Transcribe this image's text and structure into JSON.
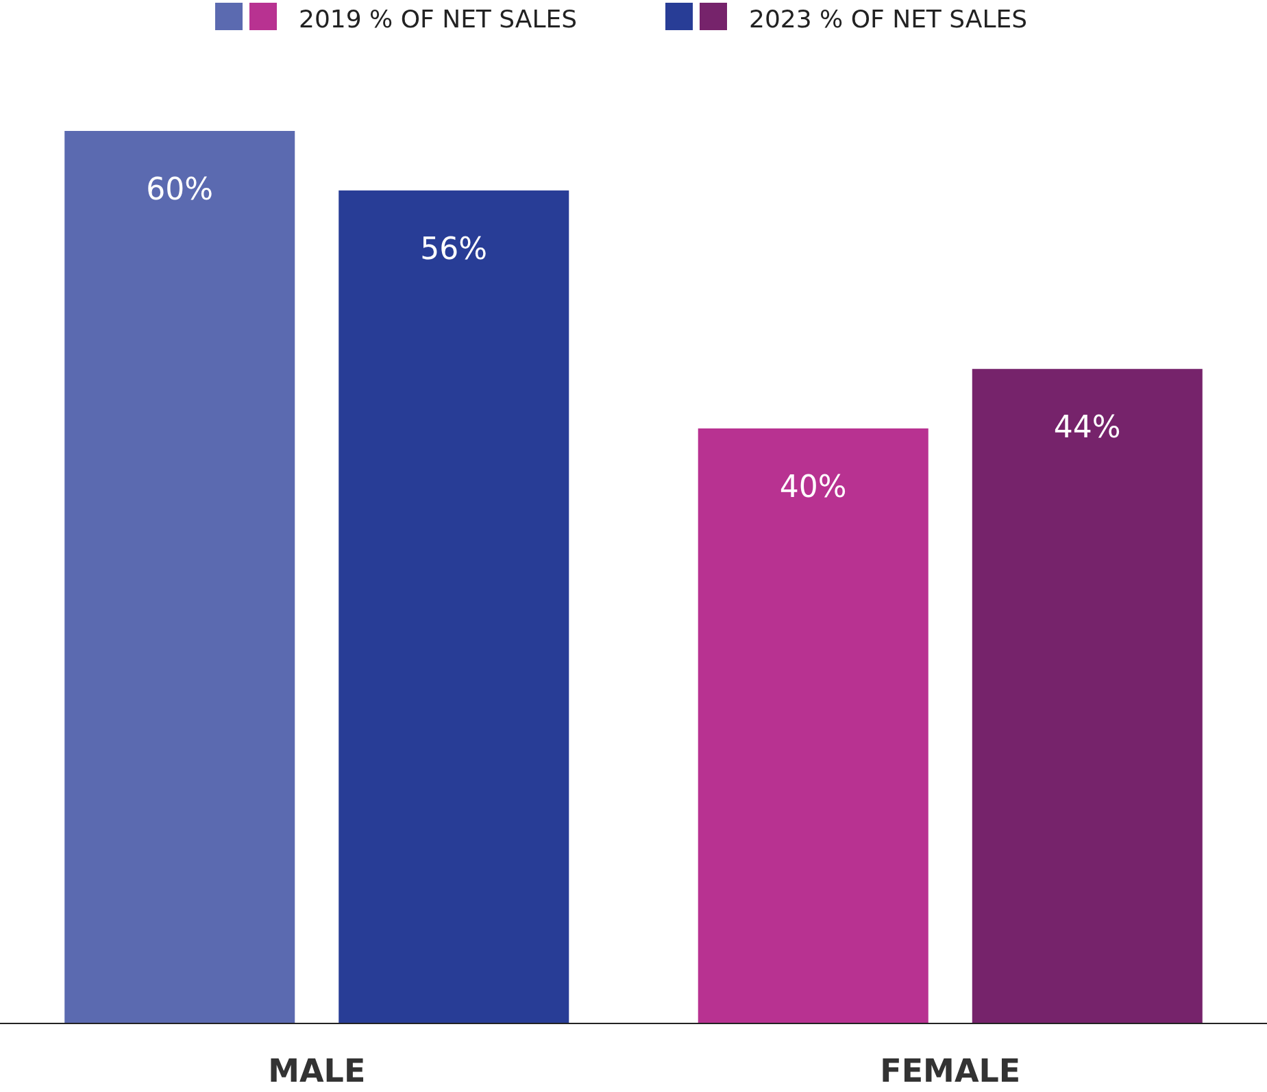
{
  "chart_data": {
    "type": "bar",
    "categories": [
      "MALE",
      "FEMALE"
    ],
    "series": [
      {
        "name": "2019 % OF NET SALES",
        "colors": [
          "#5b6ab0",
          "#b83291"
        ],
        "values": [
          60,
          40
        ],
        "value_labels": [
          "60%",
          "40%"
        ]
      },
      {
        "name": "2023 % OF NET SALES",
        "colors": [
          "#283d96",
          "#76236b"
        ],
        "values": [
          56,
          44
        ],
        "value_labels": [
          "56%",
          "44%"
        ]
      }
    ],
    "legend": "top"
  }
}
